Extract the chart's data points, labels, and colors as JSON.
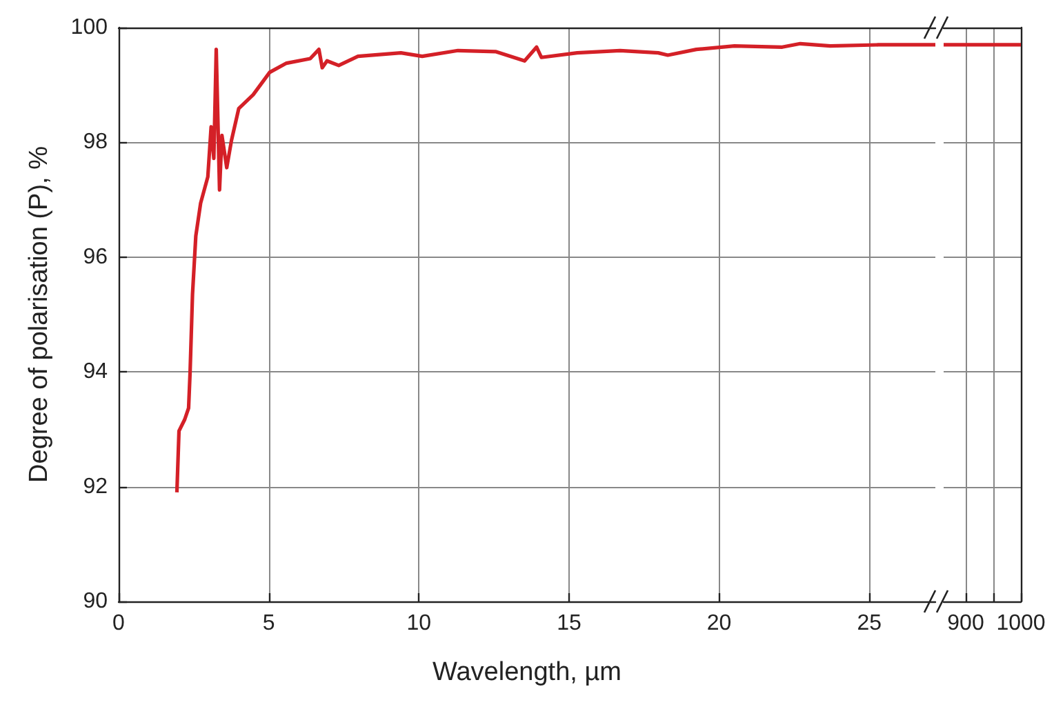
{
  "chart_data": [
    {
      "type": "line",
      "xlabel": "Wavelength, µm",
      "ylabel": "Degree of polarisation (P), %",
      "xlim": [
        0,
        27.2
      ],
      "xticks": [
        0,
        5,
        10,
        15,
        20,
        25
      ],
      "ylim": [
        90,
        100
      ],
      "yticks": [
        90,
        92,
        94,
        96,
        98,
        100
      ],
      "grid": true,
      "tick_labels": "xy",
      "series": [
        {
          "color": "#d42027",
          "x": [
            1.94,
            2.01,
            2.2,
            2.33,
            2.38,
            2.46,
            2.57,
            2.73,
            2.97,
            3.08,
            3.17,
            3.25,
            3.36,
            3.44,
            3.6,
            3.76,
            4.0,
            4.48,
            5.03,
            5.59,
            6.38,
            6.67,
            6.78,
            6.94,
            7.33,
            7.97,
            9.4,
            10.11,
            11.3,
            12.57,
            13.52,
            13.92,
            14.08,
            15.27,
            16.7,
            17.97,
            18.29,
            19.24,
            20.51,
            22.1,
            22.7,
            23.7,
            25.3,
            27.2
          ],
          "values": [
            91.9,
            92.97,
            93.17,
            93.37,
            94.0,
            95.35,
            96.37,
            96.94,
            97.4,
            98.27,
            97.72,
            99.62,
            97.17,
            98.12,
            97.56,
            98.04,
            98.59,
            98.83,
            99.22,
            99.38,
            99.46,
            99.62,
            99.3,
            99.42,
            99.34,
            99.5,
            99.56,
            99.5,
            99.6,
            99.58,
            99.42,
            99.66,
            99.48,
            99.56,
            99.6,
            99.56,
            99.52,
            99.62,
            99.68,
            99.66,
            99.72,
            99.68,
            99.7,
            99.7
          ]
        }
      ]
    },
    {
      "type": "line",
      "xlim": [
        860,
        1000
      ],
      "xticks": [
        900,
        {
          "value": 950,
          "label": null
        },
        1000
      ],
      "ylim": [
        90,
        100
      ],
      "yticks": [
        90,
        92,
        94,
        96,
        98,
        100
      ],
      "grid": true,
      "tick_labels": "x",
      "series": [
        {
          "color": "#d42027",
          "x": [
            860,
            1000
          ],
          "values": [
            99.7,
            99.7
          ]
        }
      ]
    }
  ]
}
